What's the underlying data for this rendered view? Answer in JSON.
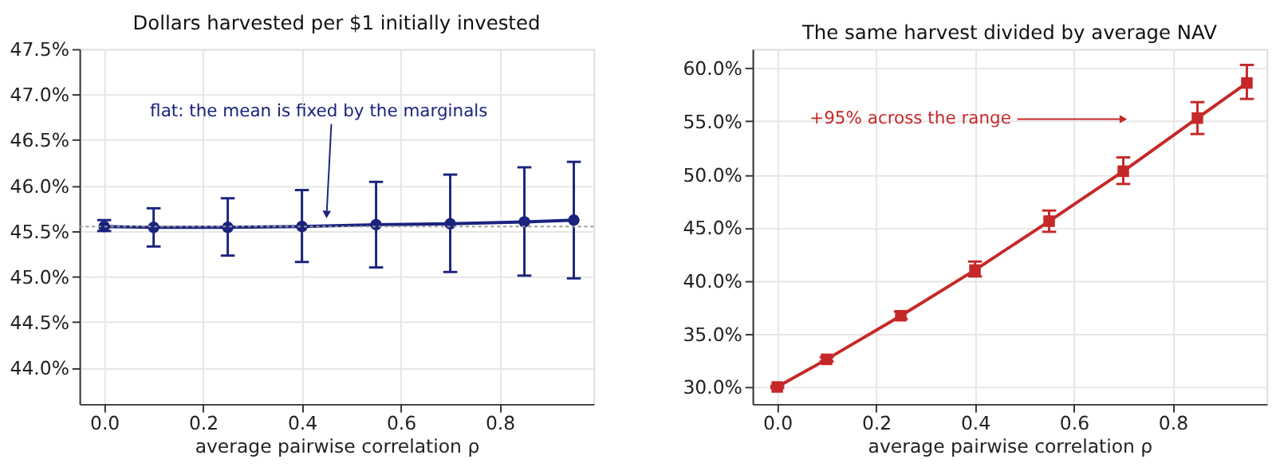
{
  "chart_data": [
    {
      "type": "line",
      "title": "Dollars harvested per $1 initially invested",
      "xlabel": "average pairwise correlation ρ",
      "x": [
        0.0,
        0.1,
        0.25,
        0.4,
        0.55,
        0.7,
        0.85,
        0.95
      ],
      "series": [
        {
          "color": "#1a237e",
          "values": [
            45.55,
            45.54,
            45.54,
            45.55,
            45.57,
            45.58,
            45.6,
            45.62
          ],
          "errors": [
            [
              45.5,
              45.62
            ],
            [
              45.33,
              45.75
            ],
            [
              45.23,
              45.86
            ],
            [
              45.16,
              45.95
            ],
            [
              45.1,
              46.04
            ],
            [
              45.05,
              46.12
            ],
            [
              45.01,
              46.2
            ],
            [
              44.98,
              46.26
            ]
          ]
        }
      ],
      "marker": "circle",
      "line_style": "solid",
      "grid": true,
      "xlim": [
        -0.05,
        0.99
      ],
      "xticks": [
        {
          "value": 0.0,
          "label": "0.0"
        },
        {
          "value": 0.2,
          "label": "0.2"
        },
        {
          "value": 0.4,
          "label": "0.4"
        },
        {
          "value": 0.6,
          "label": "0.6"
        },
        {
          "value": 0.8,
          "label": "0.8"
        }
      ],
      "ylim": [
        43.6,
        47.5
      ],
      "yticks": [
        {
          "value": 44.0,
          "label": "44.0%"
        },
        {
          "value": 44.5,
          "label": "44.5%"
        },
        {
          "value": 45.0,
          "label": "45.0%"
        },
        {
          "value": 45.5,
          "label": "45.5%"
        },
        {
          "value": 46.0,
          "label": "46.0%"
        },
        {
          "value": 46.5,
          "label": "46.5%"
        },
        {
          "value": 47.0,
          "label": "47.0%"
        },
        {
          "value": 47.5,
          "label": "47.5%"
        }
      ],
      "ref_lines": [
        {
          "axis": "y",
          "value": 45.55,
          "color": "#999999",
          "line_style": "dotted"
        }
      ],
      "annotations": [
        {
          "text": "flat: the mean is fixed by the marginals",
          "x": 0.45,
          "y": 45.58
        }
      ]
    },
    {
      "type": "line",
      "title": "The same harvest divided by average NAV",
      "xlabel": "average pairwise correlation ρ",
      "x": [
        0.0,
        0.1,
        0.25,
        0.4,
        0.55,
        0.7,
        0.85,
        0.95
      ],
      "series": [
        {
          "color": "#c62828",
          "values": [
            30.0,
            32.6,
            36.7,
            41.0,
            45.6,
            50.3,
            55.3,
            58.6
          ],
          "errors": [
            [
              29.9,
              30.1
            ],
            [
              32.4,
              32.8
            ],
            [
              36.4,
              37.1
            ],
            [
              40.4,
              41.8
            ],
            [
              44.6,
              46.6
            ],
            [
              49.1,
              51.6
            ],
            [
              53.8,
              56.8
            ],
            [
              57.1,
              60.3
            ]
          ]
        }
      ],
      "marker": "square",
      "line_style": "solid",
      "grid": true,
      "xlim": [
        -0.05,
        0.99
      ],
      "xticks": [
        {
          "value": 0.0,
          "label": "0.0"
        },
        {
          "value": 0.2,
          "label": "0.2"
        },
        {
          "value": 0.4,
          "label": "0.4"
        },
        {
          "value": 0.6,
          "label": "0.6"
        },
        {
          "value": 0.8,
          "label": "0.8"
        }
      ],
      "ylim": [
        28.4,
        61.8
      ],
      "yticks": [
        {
          "value": 30.0,
          "label": "30.0%"
        },
        {
          "value": 35.0,
          "label": "35.0%"
        },
        {
          "value": 40.0,
          "label": "40.0%"
        },
        {
          "value": 45.0,
          "label": "45.0%"
        },
        {
          "value": 50.0,
          "label": "50.0%"
        },
        {
          "value": 55.0,
          "label": "55.0%"
        },
        {
          "value": 60.0,
          "label": "60.0%"
        }
      ],
      "annotations": [
        {
          "text": "+95% across the range",
          "x": 0.7,
          "y": 55.2
        }
      ]
    }
  ]
}
